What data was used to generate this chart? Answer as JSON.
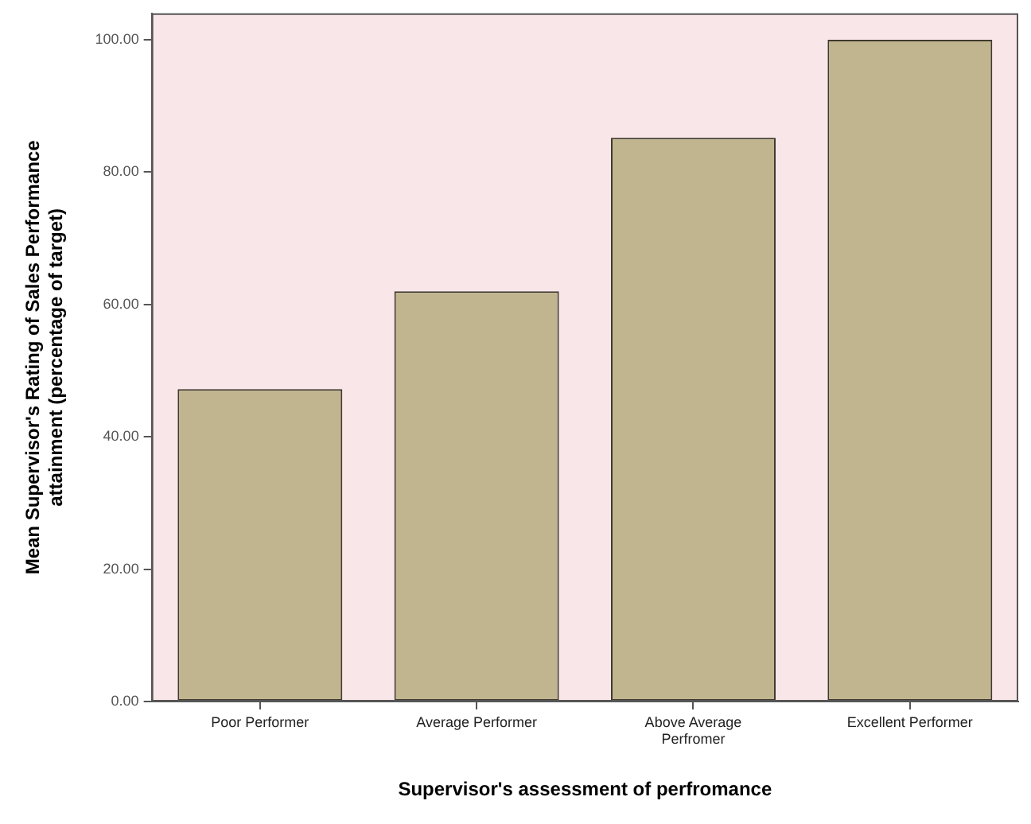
{
  "chart_data": {
    "type": "bar",
    "xlabel": "Supervisor's assessment of perfromance",
    "ylabel": "Mean Supervisor's Rating of Sales Performance\nattainment (percentage of target)",
    "categories": [
      "Poor Performer",
      "Average Performer",
      "Above Average Perfromer",
      "Excellent Performer"
    ],
    "values": [
      47.2,
      62,
      85.2,
      100
    ],
    "color": "#c1b58f",
    "ylim": [
      0,
      104
    ],
    "yticks": [
      {
        "value": 0,
        "label": "0.00"
      },
      {
        "value": 20,
        "label": "20.00"
      },
      {
        "value": 40,
        "label": "40.00"
      },
      {
        "value": 60,
        "label": "60.00"
      },
      {
        "value": 80,
        "label": "80.00"
      },
      {
        "value": 100,
        "label": "100.00"
      }
    ]
  }
}
